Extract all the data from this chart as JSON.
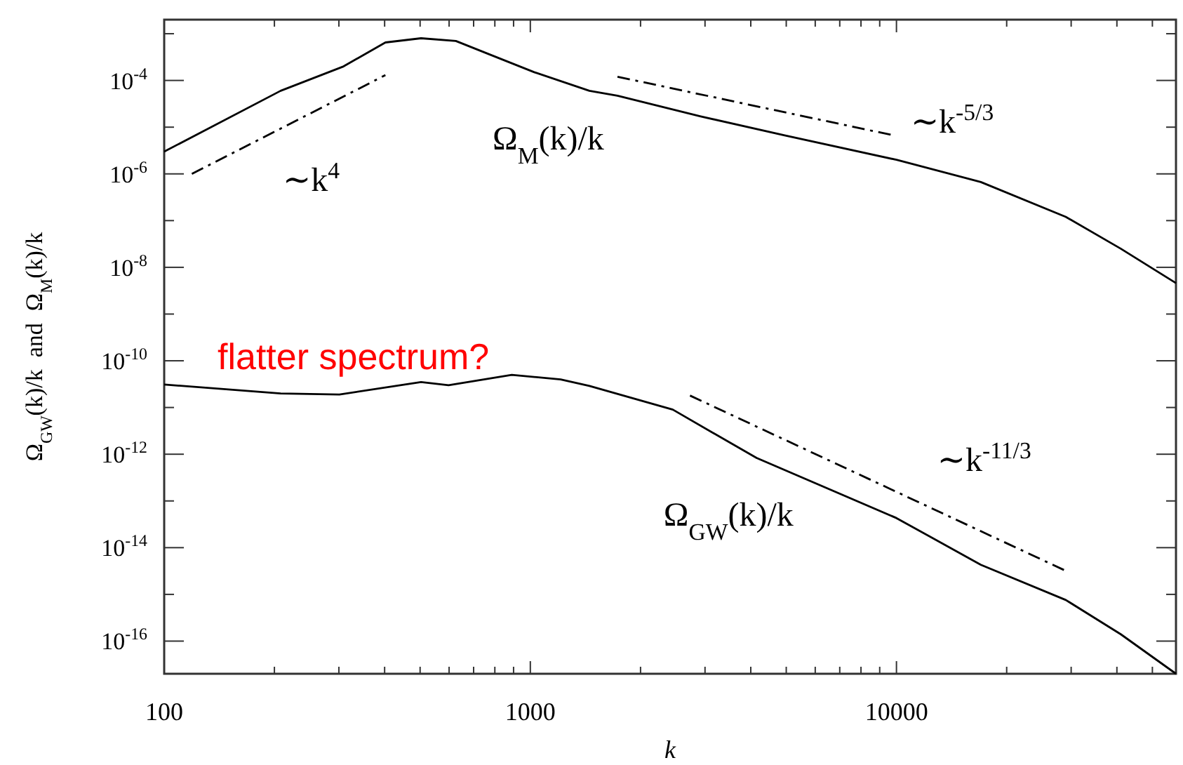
{
  "chart_data": {
    "type": "line",
    "xlabel": "k",
    "ylabel": "Ω$_{GW}$(k)/k  and  Ω$_{M}$(k)/k",
    "log": "xy",
    "grid": false,
    "xlim": [
      100,
      58000
    ],
    "ylim": [
      2e-17,
      0.002
    ],
    "xticks": [
      100,
      {
        "value": 200,
        "label": null
      },
      {
        "value": 300,
        "label": null
      },
      {
        "value": 400,
        "label": null
      },
      {
        "value": 500,
        "label": null
      },
      {
        "value": 600,
        "label": null
      },
      {
        "value": 700,
        "label": null
      },
      {
        "value": 800,
        "label": null
      },
      {
        "value": 900,
        "label": null
      },
      1000,
      {
        "value": 2000,
        "label": null
      },
      {
        "value": 3000,
        "label": null
      },
      {
        "value": 4000,
        "label": null
      },
      {
        "value": 5000,
        "label": null
      },
      {
        "value": 6000,
        "label": null
      },
      {
        "value": 7000,
        "label": null
      },
      {
        "value": 8000,
        "label": null
      },
      {
        "value": 9000,
        "label": null
      },
      10000,
      {
        "value": 20000,
        "label": null
      },
      {
        "value": 30000,
        "label": null
      },
      {
        "value": 40000,
        "label": null
      },
      {
        "value": 50000,
        "label": null
      }
    ],
    "yticks": [
      {
        "value": 1e-16,
        "label": "10$^{-16}$"
      },
      {
        "value": 1e-15,
        "label": null
      },
      {
        "value": 1e-14,
        "label": "10$^{-14}$"
      },
      {
        "value": 1e-13,
        "label": null
      },
      {
        "value": 1e-12,
        "label": "10$^{-12}$"
      },
      {
        "value": 1e-11,
        "label": null
      },
      {
        "value": 1e-10,
        "label": "10$^{-10}$"
      },
      {
        "value": 1e-09,
        "label": null
      },
      {
        "value": 1e-08,
        "label": "10$^{-8}$"
      },
      {
        "value": 1e-07,
        "label": null
      },
      {
        "value": 1e-06,
        "label": "10$^{-6}$"
      },
      {
        "value": 1e-05,
        "label": null
      },
      {
        "value": 0.0001,
        "label": "10$^{-4}$"
      },
      {
        "value": 0.001,
        "label": null
      }
    ],
    "annotations": [
      "flatter spectrum?"
    ],
    "series": [
      {
        "name": "Ω$_{M}$(k)/k",
        "color": "#000000",
        "line_style": "solid",
        "x": [
          100,
          208,
          309,
          402,
          503,
          626,
          781,
          1025,
          1450,
          1730,
          2920,
          4950,
          10000,
          17000,
          29000,
          41000,
          58000
        ],
        "values": [
          3e-06,
          6e-05,
          0.0002,
          0.00065,
          0.0008,
          0.0007,
          0.00035,
          0.00015,
          6e-05,
          4.7e-05,
          1.7e-05,
          6.7e-06,
          2e-06,
          6.7e-07,
          1.2e-07,
          2.5e-08,
          4.6e-09
        ]
      },
      {
        "name": "Ω$_{GW}$(k)/k",
        "color": "#000000",
        "line_style": "solid",
        "x": [
          100,
          208,
          301,
          503,
          598,
          890,
          1210,
          1450,
          2450,
          4150,
          10000,
          17000,
          29000,
          41000,
          58000
        ],
        "values": [
          3.1e-11,
          2e-11,
          1.9e-11,
          3.5e-11,
          3e-11,
          5e-11,
          4e-11,
          2.9e-11,
          9e-12,
          8.3e-13,
          4.3e-14,
          4.3e-15,
          7.6e-16,
          1.4e-16,
          2e-17
        ]
      },
      {
        "name": "∼k$^{4}$",
        "color": "#000000",
        "line_style": "dashed",
        "x": [
          119,
          402
        ],
        "values": [
          1e-06,
          0.00013
        ]
      },
      {
        "name": "∼k$^{-5/3}$",
        "color": "#000000",
        "line_style": "dashed",
        "x": [
          1730,
          9800
        ],
        "values": [
          0.00012,
          6.7e-06
        ]
      },
      {
        "name": "∼k$^{-11/3}$",
        "color": "#000000",
        "line_style": "dashed",
        "x": [
          2730,
          29500
        ],
        "values": [
          1.8e-11,
          3e-15
        ]
      }
    ]
  }
}
